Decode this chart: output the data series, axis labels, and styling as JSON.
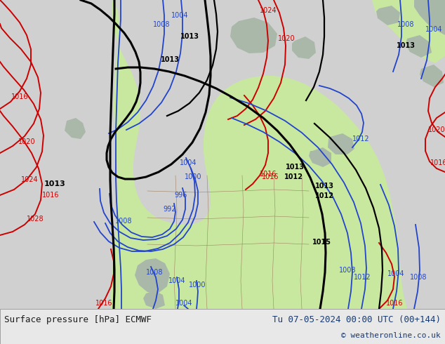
{
  "title_left": "Surface pressure [hPa] ECMWF",
  "title_right": "Tu 07-05-2024 00:00 UTC (00+144)",
  "copyright": "© weatheronline.co.uk",
  "bg_color": "#d0d0d0",
  "land_green": "#c8e8a0",
  "land_gray": "#aab8aa",
  "footer_bg": "#e8e8e8",
  "text_color_left": "#1a1a1a",
  "text_color_right": "#1a3a6e",
  "figsize": [
    6.34,
    4.9
  ],
  "dpi": 100
}
